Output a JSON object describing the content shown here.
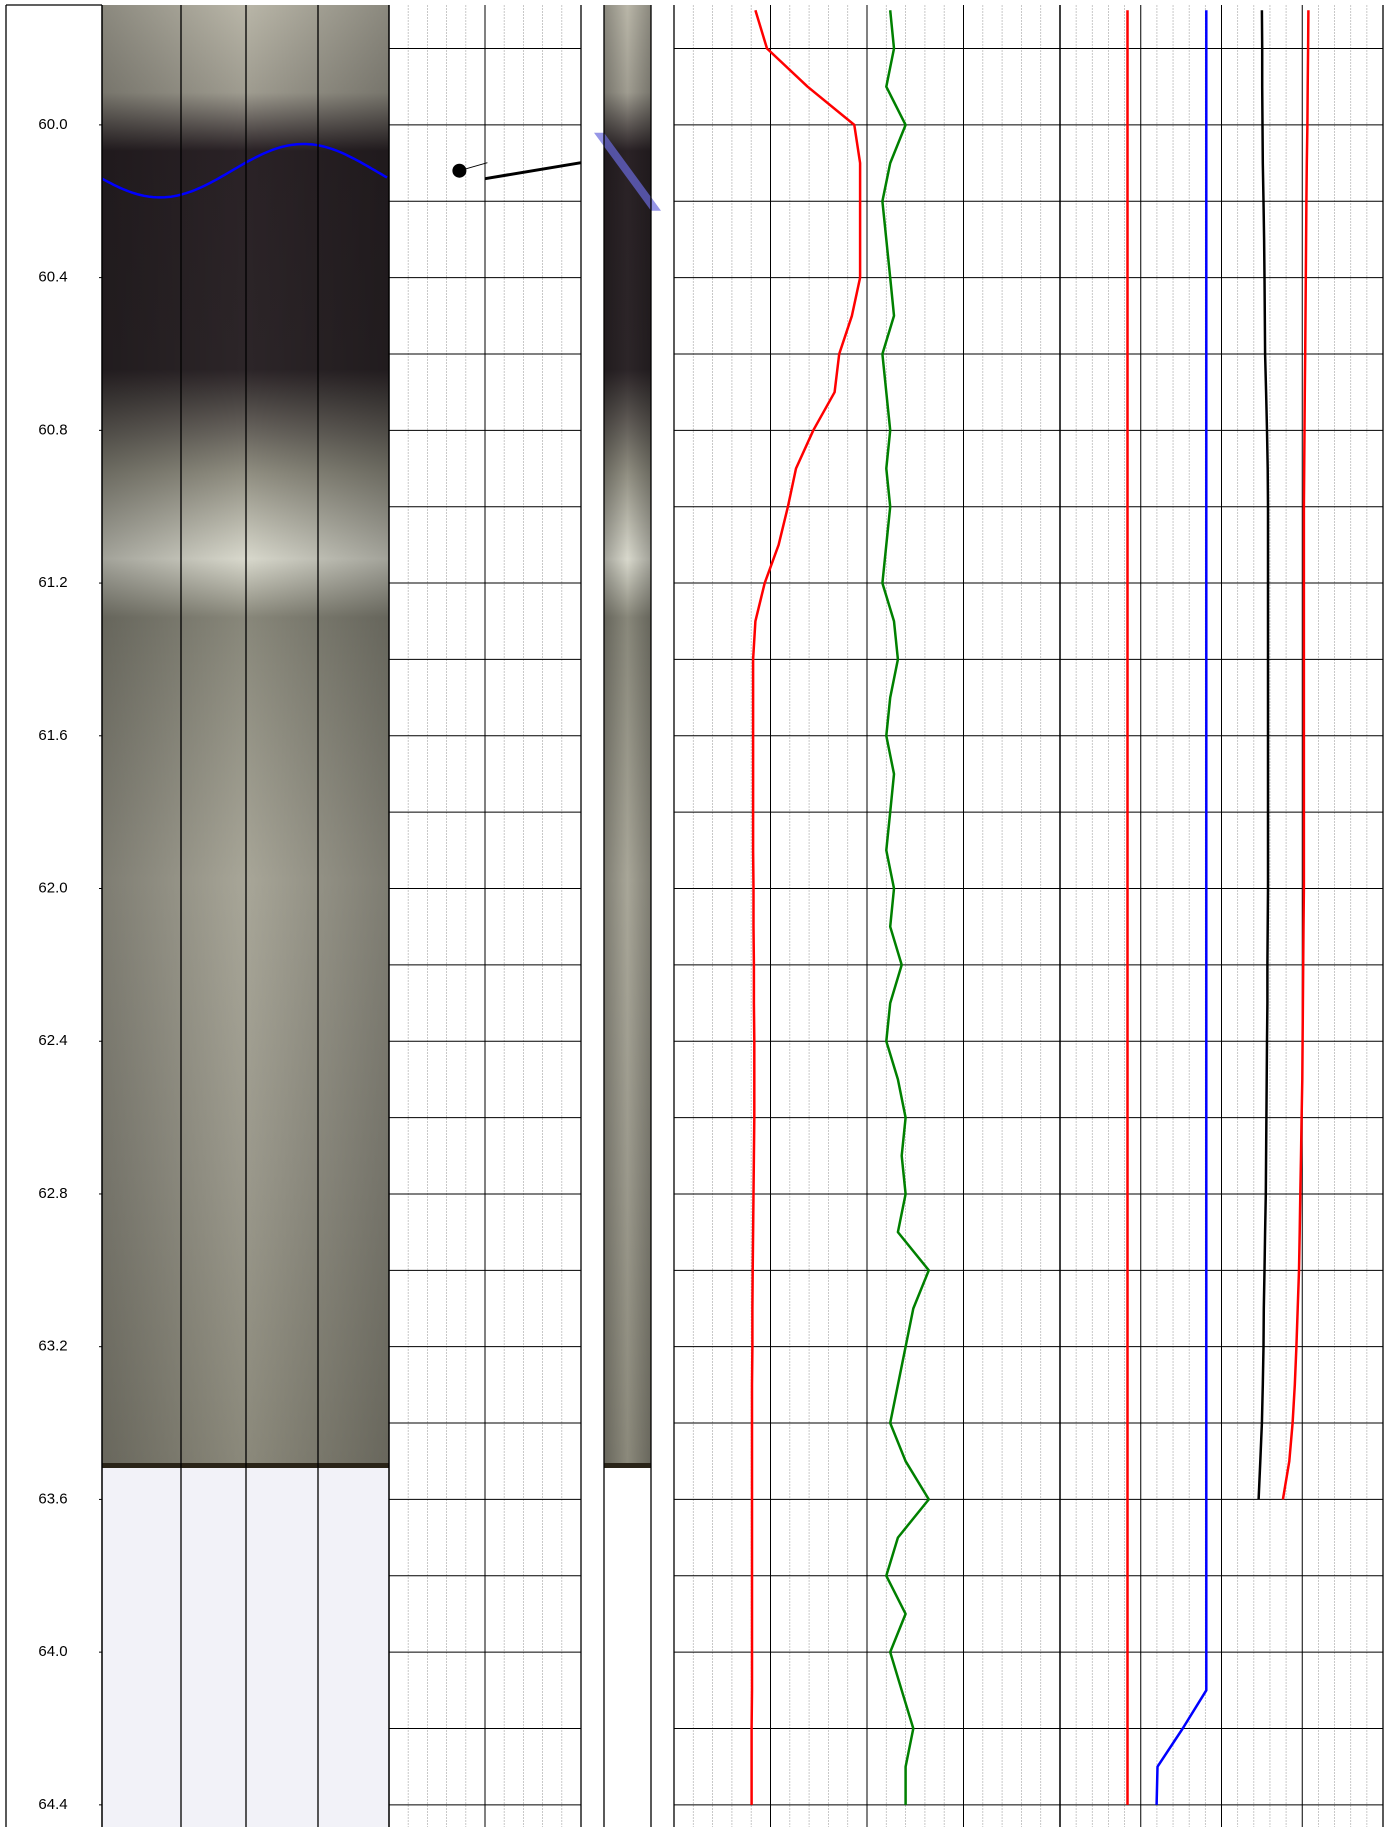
{
  "chart_data": {
    "type": "well-log",
    "ylim": [
      59.686,
      64.458
    ],
    "yticks": [
      {
        "value": 60,
        "label": "60.0"
      },
      {
        "value": 60.4,
        "label": "60.4"
      },
      {
        "value": 60.8,
        "label": "60.8"
      },
      {
        "value": 61.2,
        "label": "61.2"
      },
      {
        "value": 61.6,
        "label": "61.6"
      },
      {
        "value": 62,
        "label": "62.0"
      },
      {
        "value": 62.4,
        "label": "62.4"
      },
      {
        "value": 62.8,
        "label": "62.8"
      },
      {
        "value": 63.2,
        "label": "63.2"
      },
      {
        "value": 63.6,
        "label": "63.6"
      },
      {
        "value": 64,
        "label": "64.0"
      },
      {
        "value": 64.4,
        "label": "64.4"
      }
    ],
    "minor_yticks": [
      59.8,
      60,
      60.2,
      60.4,
      60.6,
      60.8,
      61,
      61.2,
      61.4,
      61.6,
      61.8,
      62,
      62.2,
      62.4,
      62.6,
      62.8,
      63,
      63.2,
      63.4,
      63.6,
      63.8,
      64,
      64.2,
      64.4
    ],
    "sinusoid": {
      "depth": 60.12,
      "amplitude": 0.07,
      "color": "#0000ff"
    },
    "tadpole": {
      "depth": 60.12,
      "dip": 33
    },
    "depths": [
      59.7,
      59.8,
      59.9,
      60,
      60.1,
      60.2,
      60.3,
      60.4,
      60.5,
      60.6,
      60.7,
      60.8,
      60.9,
      61,
      61.1,
      61.2,
      61.3,
      61.4,
      61.5,
      61.6,
      61.7,
      61.8,
      61.9,
      62,
      62.1,
      62.2,
      62.3,
      62.4,
      62.5,
      62.6,
      62.7,
      62.8,
      62.9,
      63,
      63.1,
      63.2,
      63.3,
      63.4,
      63.5,
      63.6,
      63.7,
      63.8,
      63.9,
      64,
      64.1,
      64.2,
      64.3,
      64.4
    ],
    "tracks": [
      {
        "xlim": [
          0,
          100
        ],
        "series": [
          {
            "color": "#ff0000",
            "values": [
              21.1,
              24.1,
              34.6,
              46.7,
              48.2,
              48.2,
              48.2,
              48.2,
              46.1,
              42.8,
              41.6,
              36.1,
              31.6,
              29.5,
              27.1,
              23.5,
              21.1,
              20.5,
              20.5,
              20.5,
              20.5,
              20.5,
              20.5,
              20.6,
              20.6,
              20.7,
              20.7,
              20.8,
              20.8,
              20.8,
              20.7,
              20.6,
              20.5,
              20.4,
              20.3,
              20.3,
              20.2,
              20.2,
              20.2,
              20.2,
              20.2,
              20.2,
              20.2,
              20.2,
              20.2,
              20.1,
              20.1,
              20.1
            ]
          },
          {
            "color": "#008000",
            "values": [
              56,
              57,
              55,
              60,
              56,
              54,
              55,
              56,
              57,
              54,
              55,
              56,
              55,
              56,
              55,
              54,
              57,
              58,
              56,
              55,
              57,
              56,
              55,
              57,
              56,
              59,
              56,
              55,
              58,
              60,
              59,
              60,
              58,
              66,
              62,
              60,
              58,
              56,
              60,
              66,
              58,
              55,
              60,
              56,
              59,
              62,
              60,
              60
            ]
          }
        ]
      },
      {
        "xlim": [
          0,
          100
        ],
        "series": [
          {
            "color": "#ff0000",
            "values": [
              20.9,
              20.9,
              20.9,
              20.9,
              20.9,
              20.9,
              20.9,
              20.9,
              20.9,
              20.9,
              20.9,
              20.9,
              20.9,
              20.9,
              20.9,
              20.9,
              20.9,
              20.9,
              20.9,
              20.9,
              20.9,
              20.9,
              20.9,
              20.9,
              20.9,
              20.9,
              20.9,
              20.9,
              20.9,
              20.9,
              20.9,
              20.9,
              20.9,
              20.9,
              20.9,
              20.9,
              20.9,
              20.9,
              20.9,
              20.9,
              20.9,
              20.9,
              20.9,
              20.9,
              20.9,
              20.9,
              20.9,
              20.9
            ]
          },
          {
            "color": "#0000ff",
            "values": [
              45.3,
              45.3,
              45.3,
              45.3,
              45.3,
              45.3,
              45.3,
              45.3,
              45.3,
              45.3,
              45.3,
              45.3,
              45.3,
              45.3,
              45.3,
              45.3,
              45.3,
              45.3,
              45.3,
              45.3,
              45.3,
              45.3,
              45.3,
              45.3,
              45.3,
              45.3,
              45.3,
              45.3,
              45.3,
              45.3,
              45.3,
              45.3,
              45.3,
              45.3,
              45.3,
              45.3,
              45.3,
              45.3,
              45.3,
              45.3,
              45.3,
              45.3,
              45.3,
              45.3,
              45.3,
              38,
              30.2,
              29.9
            ]
          },
          {
            "color": "#000000",
            "values": [
              62.5,
              62.6,
              62.6,
              62.7,
              62.8,
              63,
              63.2,
              63.3,
              63.4,
              63.5,
              63.8,
              64.1,
              64.3,
              64.4,
              64.4,
              64.4,
              64.4,
              64.4,
              64.4,
              64.4,
              64.4,
              64.4,
              64.4,
              64.4,
              64.3,
              64.2,
              64.2,
              64.1,
              64,
              63.9,
              63.8,
              63.7,
              63.5,
              63.3,
              63.1,
              63,
              62.8,
              62.5,
              62,
              61.5,
              null,
              null,
              null,
              null,
              null,
              null,
              null,
              null
            ]
          },
          {
            "color": "#ff0000",
            "values": [
              76.9,
              76.8,
              76.7,
              76.6,
              76.4,
              76.3,
              76.2,
              76.1,
              76,
              75.9,
              75.8,
              75.7,
              75.6,
              75.5,
              75.5,
              75.5,
              75.5,
              75.5,
              75.5,
              75.5,
              75.5,
              75.5,
              75.5,
              75.5,
              75.4,
              75.3,
              75.2,
              75.1,
              75,
              74.8,
              74.6,
              74.4,
              74.2,
              74,
              73.6,
              73.2,
              72.7,
              72,
              71,
              69,
              null,
              null,
              null,
              null,
              null,
              null,
              null,
              null
            ]
          }
        ]
      }
    ]
  }
}
